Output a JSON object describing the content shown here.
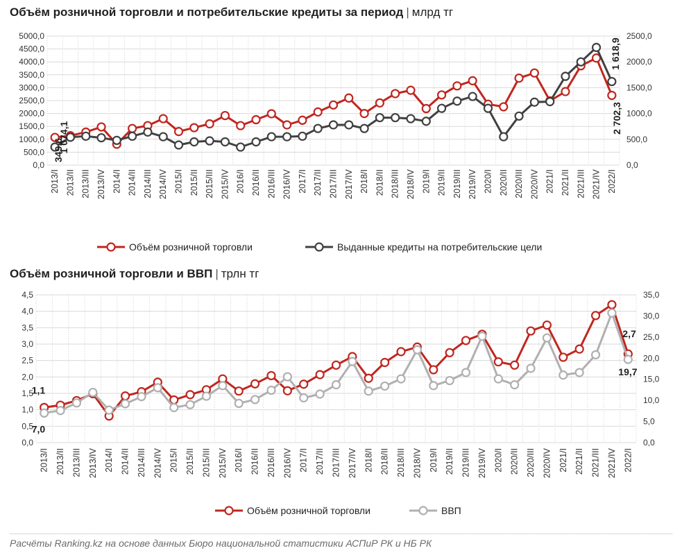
{
  "chart_data": [
    {
      "type": "line",
      "title": "Объём розничной торговли и потребительские кредиты за период",
      "title_sep": "|",
      "unit": "млрд тг",
      "categories": [
        "2013/I",
        "2013/II",
        "2013/III",
        "2013/IV",
        "2014/I",
        "2014/II",
        "2014/III",
        "2014/IV",
        "2015/I",
        "2015/II",
        "2015/III",
        "2015/IV",
        "2016/I",
        "2016/II",
        "2016/III",
        "2016/IV",
        "2017/I",
        "2017/II",
        "2017/III",
        "2017/IV",
        "2018/I",
        "2018/II",
        "2018/III",
        "2018/IV",
        "2019/I",
        "2019/II",
        "2019/III",
        "2019/IV",
        "2020/I",
        "2020/II",
        "2020/III",
        "2020/IV",
        "2021/I",
        "2021/II",
        "2021/III",
        "2021/IV",
        "2022/I"
      ],
      "ylim_left": [
        0,
        5000
      ],
      "ylim_right": [
        0,
        2500
      ],
      "yticks_left": [
        "0,0",
        "500,0",
        "1000,0",
        "1500,0",
        "2000,0",
        "2500,0",
        "3000,0",
        "3500,0",
        "4000,0",
        "4500,0",
        "5000,0"
      ],
      "yticks_right": [
        "0,0",
        "500,0",
        "1000,0",
        "1500,0",
        "2000,0",
        "2500,0"
      ],
      "grid": true,
      "legend_position": "bottom",
      "series": [
        {
          "name": "Объём розничной торговли",
          "axis": "left",
          "color": "#c0261f",
          "values": [
            1074.1,
            1140,
            1280,
            1480,
            810,
            1420,
            1530,
            1800,
            1300,
            1450,
            1600,
            1920,
            1530,
            1760,
            1990,
            1560,
            1740,
            2060,
            2330,
            2600,
            2000,
            2410,
            2770,
            2900,
            2190,
            2720,
            3070,
            3270,
            2360,
            2260,
            3370,
            3570,
            2490,
            2850,
            3850,
            4150,
            2702.3
          ]
        },
        {
          "name": "Выданные кредиты на потребительские цели",
          "axis": "right",
          "color": "#404040",
          "values": [
            349.6,
            540,
            560,
            530,
            480,
            560,
            640,
            550,
            390,
            450,
            470,
            450,
            350,
            450,
            550,
            550,
            560,
            710,
            780,
            780,
            710,
            920,
            920,
            900,
            850,
            1100,
            1240,
            1330,
            1100,
            550,
            950,
            1220,
            1230,
            1720,
            2000,
            2280,
            1618.9
          ]
        }
      ],
      "annotations": [
        {
          "text": "1 074,1",
          "series": 0,
          "index": 0
        },
        {
          "text": "349,6",
          "series": 1,
          "index": 0
        },
        {
          "text": "1 618,9",
          "series": 1,
          "index": 36
        },
        {
          "text": "2 702,3",
          "series": 0,
          "index": 36
        }
      ]
    },
    {
      "type": "line",
      "title": "Объём розничной торговли и ВВП",
      "title_sep": "|",
      "unit": "трлн тг",
      "categories": [
        "2013/I",
        "2013/II",
        "2013/III",
        "2013/IV",
        "2014/I",
        "2014/II",
        "2014/III",
        "2014/IV",
        "2015/I",
        "2015/II",
        "2015/III",
        "2015/IV",
        "2016/I",
        "2016/II",
        "2016/III",
        "2016/IV",
        "2017/I",
        "2017/II",
        "2017/III",
        "2017/IV",
        "2018/I",
        "2018/II",
        "2018/III",
        "2018/IV",
        "2019/I",
        "2019/II",
        "2019/III",
        "2019/IV",
        "2020/I",
        "2020/II",
        "2020/III",
        "2020/IV",
        "2021/I",
        "2021/II",
        "2021/III",
        "2021/IV",
        "2022/I"
      ],
      "ylim_left": [
        0,
        4.5
      ],
      "ylim_right": [
        0,
        35
      ],
      "yticks_left": [
        "0,0",
        "0,5",
        "1,0",
        "1,5",
        "2,0",
        "2,5",
        "3,0",
        "3,5",
        "4,0",
        "4,5"
      ],
      "yticks_right": [
        "0,0",
        "5,0",
        "10,0",
        "15,0",
        "20,0",
        "25,0",
        "30,0",
        "35,0"
      ],
      "grid": true,
      "legend_position": "bottom",
      "series": [
        {
          "name": "Объём розничной торговли",
          "axis": "left",
          "color": "#c0261f",
          "values": [
            1.07,
            1.14,
            1.28,
            1.49,
            0.81,
            1.42,
            1.55,
            1.84,
            1.3,
            1.46,
            1.61,
            1.94,
            1.57,
            1.79,
            2.04,
            1.58,
            1.78,
            2.07,
            2.36,
            2.62,
            1.96,
            2.44,
            2.77,
            2.91,
            2.22,
            2.74,
            3.11,
            3.3,
            2.46,
            2.36,
            3.4,
            3.58,
            2.6,
            2.85,
            3.87,
            4.2,
            2.7
          ]
        },
        {
          "name": "ВВП",
          "axis": "right",
          "color": "#b0b0b0",
          "values": [
            7.0,
            7.6,
            9.4,
            11.9,
            7.7,
            9.2,
            10.9,
            13.0,
            8.3,
            9.0,
            11.0,
            13.5,
            9.3,
            10.2,
            12.4,
            15.6,
            10.6,
            11.5,
            13.7,
            19.2,
            12.2,
            13.4,
            15.1,
            22.0,
            13.5,
            14.7,
            16.6,
            25.2,
            15.1,
            13.7,
            17.6,
            24.8,
            16.0,
            16.6,
            20.8,
            30.7,
            19.7
          ]
        }
      ],
      "annotations": [
        {
          "text": "1,1",
          "series": 0,
          "index": 0
        },
        {
          "text": "7,0",
          "series": 1,
          "index": 0
        },
        {
          "text": "2,7",
          "series": 0,
          "index": 36
        },
        {
          "text": "19,7",
          "series": 1,
          "index": 36
        }
      ]
    }
  ],
  "source": "Расчёты Ranking.kz на основе данных Бюро национальной статистики АСПиР РК и НБ РК"
}
